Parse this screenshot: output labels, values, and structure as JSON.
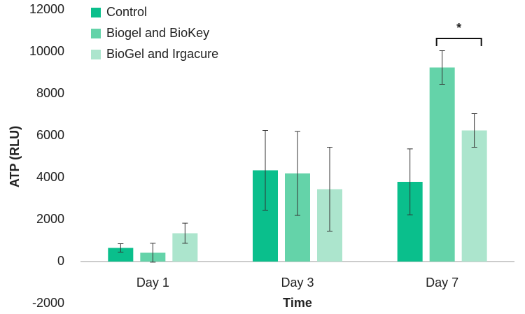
{
  "chart_data": {
    "type": "bar",
    "x_label": "Time",
    "y_label": "ATP (RLU)",
    "categories": [
      "Day 1",
      "Day 3",
      "Day 7"
    ],
    "series": [
      {
        "name": "Control",
        "color": "#0abf8c",
        "values": [
          650,
          4350,
          3800
        ],
        "errors": [
          200,
          1900,
          1570
        ]
      },
      {
        "name": "Biogel and BioKey",
        "color": "#64d3a9",
        "values": [
          420,
          4200,
          9250
        ],
        "errors": [
          450,
          2000,
          800
        ]
      },
      {
        "name": "BioGel and Irgacure",
        "color": "#ace5cd",
        "values": [
          1350,
          3450,
          6250
        ],
        "errors": [
          480,
          2000,
          800
        ]
      }
    ],
    "ylim": [
      -2000,
      12000
    ],
    "yticks": [
      -2000,
      0,
      2000,
      4000,
      6000,
      8000,
      10000,
      12000
    ],
    "grid": false,
    "legend": "top-left",
    "annotation": "*"
  }
}
